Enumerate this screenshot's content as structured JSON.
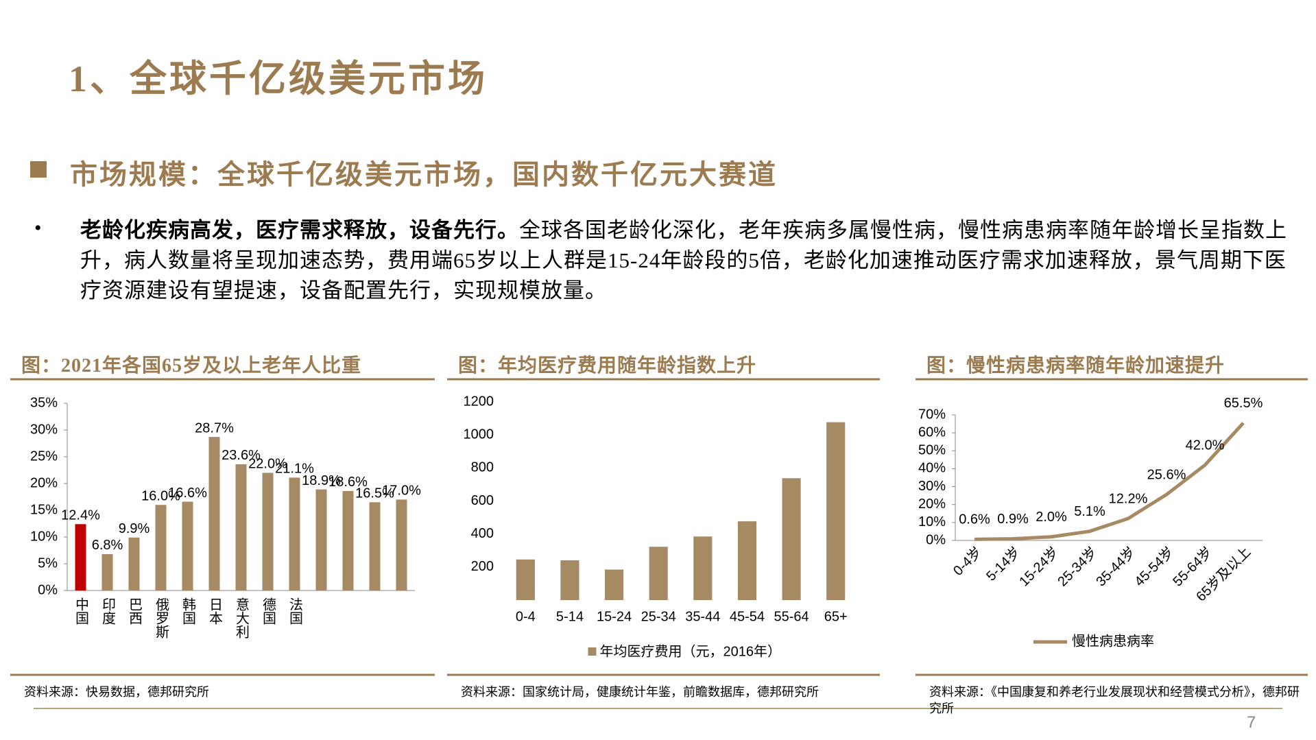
{
  "slide": {
    "title": "1、全球千亿级美元市场",
    "heading": "市场规模：全球千亿级美元市场，国内数千亿元大赛道",
    "bullet_bold": "老龄化疾病高发，医疗需求释放，设备先行。",
    "bullet_text": "全球各国老龄化深化，老年疾病多属慢性病，慢性病患病率随年龄增长呈指数上升，病人数量将呈现加速态势，费用端65岁以上人群是15-24年龄段的5倍，老龄化加速推动医疗需求加速释放，景气周期下医疗资源建设有望提速，设备配置先行，实现规模放量。",
    "page_number": "7"
  },
  "chart_data": [
    {
      "type": "bar",
      "title": "图：2021年各国65岁及以上老年人比重",
      "categories": [
        "中国",
        "印度",
        "巴西",
        "俄罗斯",
        "韩国",
        "日本",
        "意大利",
        "德国",
        "法国",
        null,
        null,
        null,
        null
      ],
      "values": [
        12.4,
        6.8,
        9.9,
        16.0,
        16.6,
        28.7,
        23.6,
        22.0,
        21.1,
        18.9,
        18.6,
        16.5,
        17.0
      ],
      "value_labels": [
        "12.4%",
        "6.8%",
        "9.9%",
        "16.0%",
        "16.6%",
        "28.7%",
        "23.6%",
        "22.0%",
        "21.1%",
        "18.9%",
        "18.6%",
        "16.5%",
        "17.0%"
      ],
      "colors": [
        "#c00000",
        "#a68a64",
        "#a68a64",
        "#a68a64",
        "#a68a64",
        "#a68a64",
        "#a68a64",
        "#a68a64",
        "#a68a64",
        "#a68a64",
        "#a68a64",
        "#a68a64",
        "#a68a64"
      ],
      "ylim": [
        0,
        35
      ],
      "yticks": [
        {
          "value": 0,
          "label": "0%"
        },
        {
          "value": 5,
          "label": "5%"
        },
        {
          "value": 10,
          "label": "10%"
        },
        {
          "value": 15,
          "label": "15%"
        },
        {
          "value": 20,
          "label": "20%"
        },
        {
          "value": 25,
          "label": "25%"
        },
        {
          "value": 30,
          "label": "30%"
        },
        {
          "value": 35,
          "label": "35%"
        }
      ],
      "axis_lines": true,
      "vertical_category_labels": true,
      "source": "资料来源：快易数据，德邦研究所"
    },
    {
      "type": "bar",
      "title": "图：年均医疗费用随年龄指数上升",
      "categories": [
        "0-4",
        "5-14",
        "15-24",
        "25-34",
        "35-44",
        "45-54",
        "55-64",
        "65+"
      ],
      "series": [
        {
          "name": "年均医疗费用（元，2016年）",
          "color": "#a68a64",
          "values": [
            246,
            241,
            185,
            323,
            385,
            477,
            738,
            1077
          ]
        }
      ],
      "ylim": [
        0,
        1200
      ],
      "yticks": [
        200,
        400,
        600,
        800,
        1000,
        1200
      ],
      "axis_lines": false,
      "vertical_category_labels": false,
      "source": "资料来源：国家统计局，健康统计年鉴，前瞻数据库，德邦研究所"
    },
    {
      "type": "line",
      "title": "图：慢性病患病率随年龄加速提升",
      "categories": [
        "0-4岁",
        "5-14岁",
        "15-24岁",
        "25-34岁",
        "35-44岁",
        "45-54岁",
        "55-64岁",
        "65岁及以上"
      ],
      "series": [
        {
          "name": "慢性病患病率",
          "color": "#a68a64",
          "values": [
            0.6,
            0.9,
            2.0,
            5.1,
            12.2,
            25.6,
            42.0,
            65.5
          ],
          "value_labels": [
            "0.6%",
            "0.9%",
            "2.0%",
            "5.1%",
            "12.2%",
            "25.6%",
            "42.0%",
            "65.5%"
          ]
        }
      ],
      "ylim": [
        0,
        70
      ],
      "yticks": [
        {
          "value": 0,
          "label": "0%"
        },
        {
          "value": 10,
          "label": "10%"
        },
        {
          "value": 20,
          "label": "20%"
        },
        {
          "value": 30,
          "label": "30%"
        },
        {
          "value": 40,
          "label": "40%"
        },
        {
          "value": 50,
          "label": "50%"
        },
        {
          "value": 60,
          "label": "60%"
        },
        {
          "value": 70,
          "label": "70%"
        }
      ],
      "axis_lines": true,
      "vertical_category_labels": false,
      "source": "资料来源：《中国康复和养老行业发展现状和经营模式分析》，德邦研究所"
    }
  ]
}
